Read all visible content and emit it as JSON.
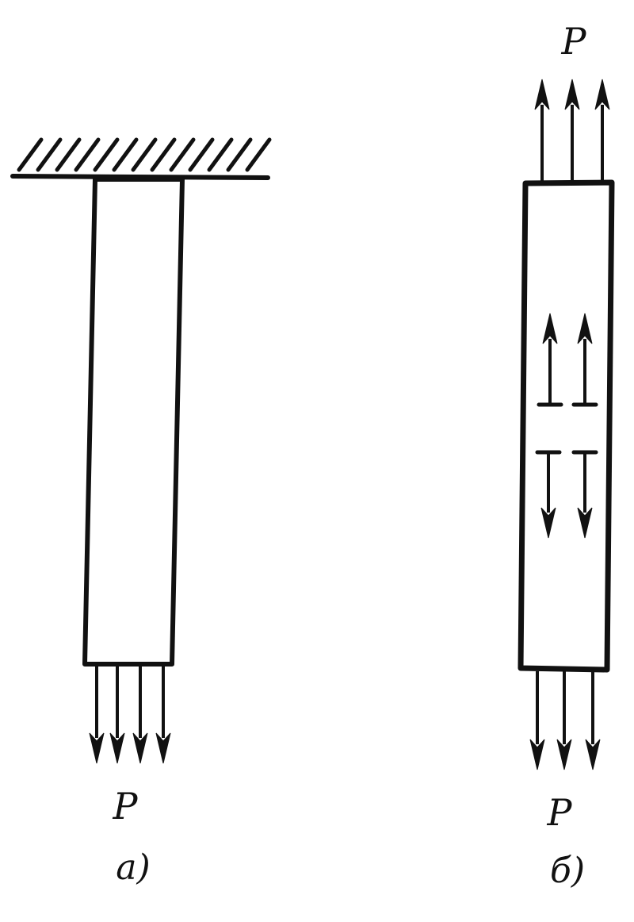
{
  "colors": {
    "ink": "#111111",
    "background": "#ffffff"
  },
  "figure_a": {
    "load_label": "P",
    "caption": "а)",
    "support": "fixed-wall-hatched",
    "load_arrow_count": 4,
    "load_direction": "down"
  },
  "figure_b": {
    "top_load_label": "P",
    "bottom_load_label": "P",
    "caption": "б)",
    "top_arrow_count": 3,
    "bottom_arrow_count": 3,
    "dislocation_symbols": [
      {
        "symbol": "⊥",
        "arrow": "up"
      },
      {
        "symbol": "⊥",
        "arrow": "up"
      },
      {
        "symbol": "T",
        "arrow": "down"
      },
      {
        "symbol": "T",
        "arrow": "down"
      }
    ]
  }
}
